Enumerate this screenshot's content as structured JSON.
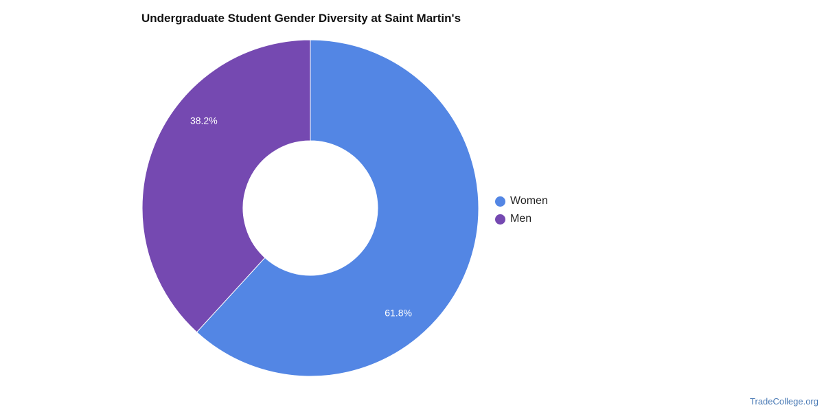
{
  "chart_data": {
    "type": "pie",
    "title": "Undergraduate Student Gender Diversity at Saint Martin's",
    "donut": true,
    "categories": [
      "Women",
      "Men"
    ],
    "values": [
      61.8,
      38.2
    ],
    "labels": [
      "61.8%",
      "38.2%"
    ],
    "colors": [
      "#5386e4",
      "#7549b1"
    ],
    "legend": {
      "placement": "right",
      "entries": [
        "Women",
        "Men"
      ]
    }
  },
  "footer": {
    "source": "TradeCollege.org"
  }
}
